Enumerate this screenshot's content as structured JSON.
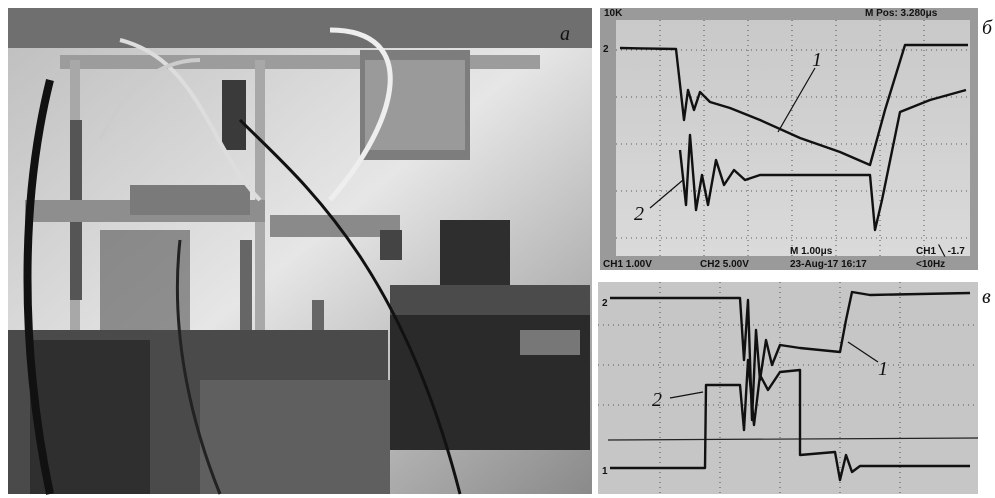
{
  "panels": {
    "a": {
      "label": "а"
    },
    "b": {
      "label": "б",
      "trace_labels": [
        "1",
        "2"
      ],
      "channel_markers": [
        "2"
      ],
      "screen": {
        "top_left": "10K",
        "top_right": "M Pos: 3.280μs",
        "ch1": "CH1 1.00V",
        "ch2": "CH2 5.00V",
        "timebase": "M 1.00μs",
        "date": "23-Aug-17 16:17",
        "trigger": "CH1 ╲ -1.7",
        "freq": "<10Hz"
      }
    },
    "c": {
      "label": "в",
      "trace_labels": [
        "1",
        "2"
      ],
      "channel_markers": [
        "2",
        "1"
      ]
    }
  }
}
